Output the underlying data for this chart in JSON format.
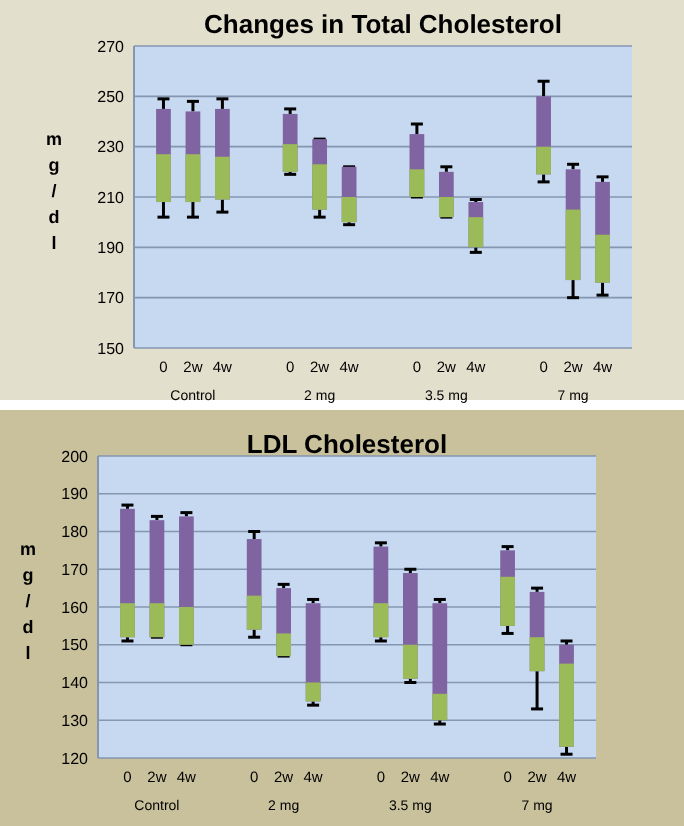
{
  "chart_data": [
    {
      "type": "box",
      "title": "Changes in Total Cholesterol",
      "ylabel": "mg/dl",
      "categories": [
        "0",
        "2w",
        "4w",
        "0",
        "2w",
        "4w",
        "0",
        "2w",
        "4w",
        "0",
        "2w",
        "4w"
      ],
      "annotations": [
        "Control",
        "2 mg",
        "3.5 mg",
        "7 mg"
      ],
      "colors": [
        "#9bbb59",
        "#9bbb59",
        "#9bbb59",
        "#9bbb59",
        "#9bbb59",
        "#9bbb59",
        "#9bbb59",
        "#9bbb59",
        "#9bbb59",
        "#9bbb59",
        "#9bbb59",
        "#9bbb59"
      ],
      "ylim": [
        150,
        270
      ],
      "yticks": [
        150,
        170,
        190,
        210,
        230,
        250,
        270
      ],
      "grid": "y",
      "series": [
        {
          "color": "#8064a2",
          "boxes": [
            {
              "low": 202,
              "q1": 208,
              "median": 227,
              "q3": 245,
              "high": 249
            },
            {
              "low": 202,
              "q1": 208,
              "median": 227,
              "q3": 244,
              "high": 248
            },
            {
              "low": 204,
              "q1": 209,
              "median": 226,
              "q3": 245,
              "high": 249
            },
            {
              "low": 219,
              "q1": 220,
              "median": 231,
              "q3": 243,
              "high": 245
            },
            {
              "low": 202,
              "q1": 205,
              "median": 223,
              "q3": 233,
              "high": 233
            },
            {
              "low": 199,
              "q1": 200,
              "median": 210,
              "q3": 222,
              "high": 222
            },
            {
              "low": 210,
              "q1": 210,
              "median": 221,
              "q3": 235,
              "high": 239
            },
            {
              "low": 202,
              "q1": 202,
              "median": 210,
              "q3": 220,
              "high": 222
            },
            {
              "low": 188,
              "q1": 190,
              "median": 202,
              "q3": 208,
              "high": 209
            },
            {
              "low": 216,
              "q1": 219,
              "median": 230,
              "q3": 250,
              "high": 256
            },
            {
              "low": 170,
              "q1": 177,
              "median": 205,
              "q3": 221,
              "high": 223
            },
            {
              "low": 171,
              "q1": 176,
              "median": 195,
              "q3": 216,
              "high": 218
            }
          ]
        }
      ]
    },
    {
      "type": "box",
      "title": "LDL Cholesterol",
      "ylabel": "mg/dl",
      "categories": [
        "0",
        "2w",
        "4w",
        "0",
        "2w",
        "4w",
        "0",
        "2w",
        "4w",
        "0",
        "2w",
        "4w"
      ],
      "annotations": [
        "Control",
        "2 mg",
        "3.5 mg",
        "7 mg"
      ],
      "colors": [
        "#9bbb59",
        "#9bbb59",
        "#9bbb59",
        "#9bbb59",
        "#9bbb59",
        "#9bbb59",
        "#9bbb59",
        "#9bbb59",
        "#9bbb59",
        "#9bbb59",
        "#9bbb59",
        "#9bbb59"
      ],
      "ylim": [
        120,
        200
      ],
      "yticks": [
        120,
        130,
        140,
        150,
        160,
        170,
        180,
        190,
        200
      ],
      "grid": "y",
      "series": [
        {
          "color": "#8064a2",
          "boxes": [
            {
              "low": 151,
              "q1": 152,
              "median": 161,
              "q3": 186,
              "high": 187
            },
            {
              "low": 152,
              "q1": 152,
              "median": 161,
              "q3": 183,
              "high": 184
            },
            {
              "low": 150,
              "q1": 150,
              "median": 160,
              "q3": 184,
              "high": 185
            },
            {
              "low": 152,
              "q1": 154,
              "median": 163,
              "q3": 178,
              "high": 180
            },
            {
              "low": 147,
              "q1": 147,
              "median": 153,
              "q3": 165,
              "high": 166
            },
            {
              "low": 134,
              "q1": 135,
              "median": 140,
              "q3": 161,
              "high": 162
            },
            {
              "low": 151,
              "q1": 152,
              "median": 161,
              "q3": 176,
              "high": 177
            },
            {
              "low": 140,
              "q1": 141,
              "median": 150,
              "q3": 169,
              "high": 170
            },
            {
              "low": 129,
              "q1": 130,
              "median": 137,
              "q3": 161,
              "high": 162
            },
            {
              "low": 153,
              "q1": 155,
              "median": 168,
              "q3": 175,
              "high": 176
            },
            {
              "low": 133,
              "q1": 143,
              "median": 152,
              "q3": 164,
              "high": 165
            },
            {
              "low": 121,
              "q1": 123,
              "median": 145,
              "q3": 150,
              "high": 151
            }
          ]
        }
      ]
    }
  ]
}
